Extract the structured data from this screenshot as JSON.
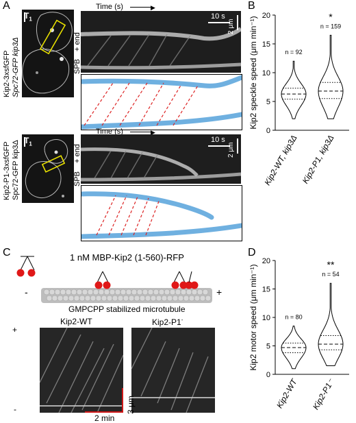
{
  "panels": {
    "A": {
      "letter": "A",
      "top": {
        "cell_label": "Kip2-3xsfGFP",
        "cell_label_2": "Spc72-GFP kip3Δ",
        "t_label": "T",
        "t_sub": "1",
        "time_label": "Time (s)",
        "end_plus": "+ end",
        "end_spb": "SPB",
        "scale_time": "10 s",
        "scale_len": "2 μm"
      },
      "bottom": {
        "cell_label": "Kip2-P1-3xsfGFP",
        "cell_label_2": "Spc72-GFP kip3Δ",
        "t_label": "T",
        "t_sub": "1",
        "time_label": "Time (s)",
        "end_plus": "+ end",
        "end_spb": "SPB",
        "scale_time": "10 s",
        "scale_len": "2 μm"
      }
    },
    "B": {
      "letter": "B",
      "significance": "*"
    },
    "C": {
      "letter": "C",
      "construct": "1 nM MBP-Kip2 (1-560)-RFP",
      "microtubule": "GMPCPP stabilized microtubule",
      "minus": "-",
      "plus": "+",
      "kymo_left_title": "Kip2-WT",
      "kymo_right_title": "Kip2-P1",
      "kymo_right_sup": "-",
      "kymo_plus": "+",
      "kymo_minus": "-",
      "scale_len": "3 μm",
      "scale_time": "2 min"
    },
    "D": {
      "letter": "D",
      "significance": "**"
    }
  },
  "chart_data": [
    {
      "type": "violin",
      "panel": "B",
      "ylabel": "Kip2 speckle speed (μm min⁻¹)",
      "ylim": [
        0,
        20
      ],
      "yticks": [
        0,
        5,
        10,
        15,
        20
      ],
      "categories": [
        "Kip2-WT, kip3Δ",
        "Kip2-P1, kip3Δ"
      ],
      "n_labels": [
        "n = 92",
        "n = 159"
      ],
      "medians": [
        6.3,
        6.8
      ],
      "q1": [
        5.4,
        5.5
      ],
      "q3": [
        7.3,
        8.3
      ],
      "min": [
        2.0,
        2.0
      ],
      "max": [
        12.0,
        16.5
      ],
      "annotation": "*"
    },
    {
      "type": "violin",
      "panel": "D",
      "ylabel": "Kip2 motor speed (μm min⁻¹)",
      "ylim": [
        0,
        20
      ],
      "yticks": [
        0,
        5,
        10,
        15,
        20
      ],
      "categories": [
        "Kip2-WT",
        "Kip2-P1⁻"
      ],
      "n_labels": [
        "n = 80",
        "n = 54"
      ],
      "medians": [
        4.7,
        5.3
      ],
      "q1": [
        3.8,
        4.3
      ],
      "q3": [
        5.5,
        6.8
      ],
      "min": [
        1.0,
        1.5
      ],
      "max": [
        8.5,
        16.0
      ],
      "annotation": "**"
    }
  ]
}
